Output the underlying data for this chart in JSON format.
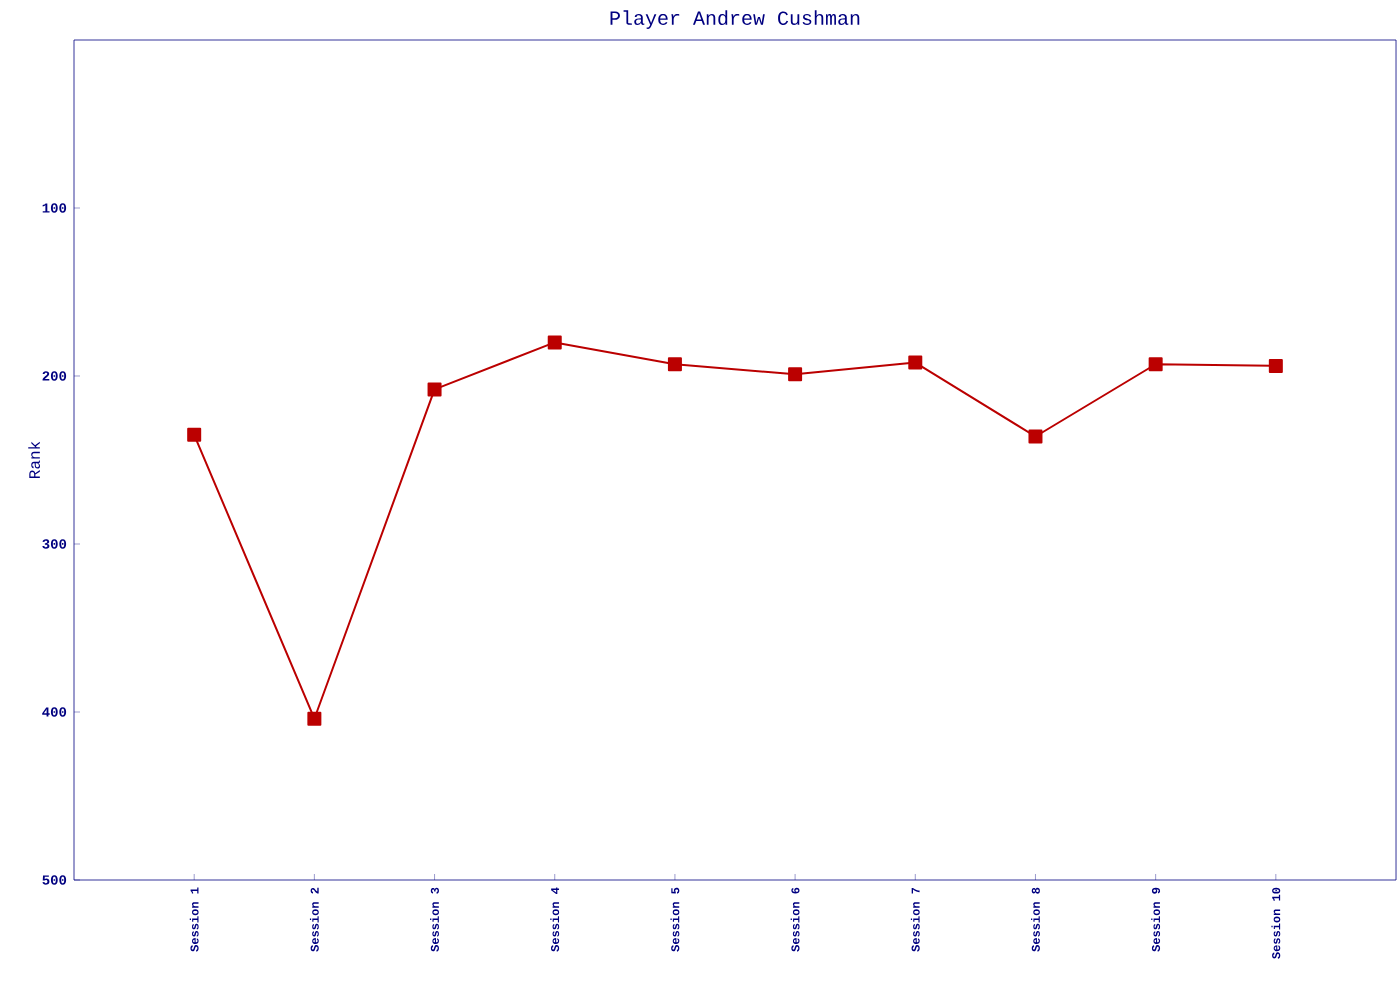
{
  "chart_data": {
    "type": "line",
    "title": "Player Andrew Cushman",
    "ylabel": "Rank",
    "categories": [
      "Session 1",
      "Session 2",
      "Session 3",
      "Session 4",
      "Session 5",
      "Session 6",
      "Session 7",
      "Session 8",
      "Session 9",
      "Session 10"
    ],
    "series": [
      {
        "color": "#bb0000",
        "values": [
          235,
          404,
          208,
          180,
          193,
          199,
          192,
          236,
          193,
          194
        ]
      }
    ],
    "ylim": [
      500,
      0
    ],
    "yticks": [
      100,
      200,
      300,
      400,
      500
    ],
    "marker": "square",
    "line_style": "solid",
    "grid": false
  }
}
